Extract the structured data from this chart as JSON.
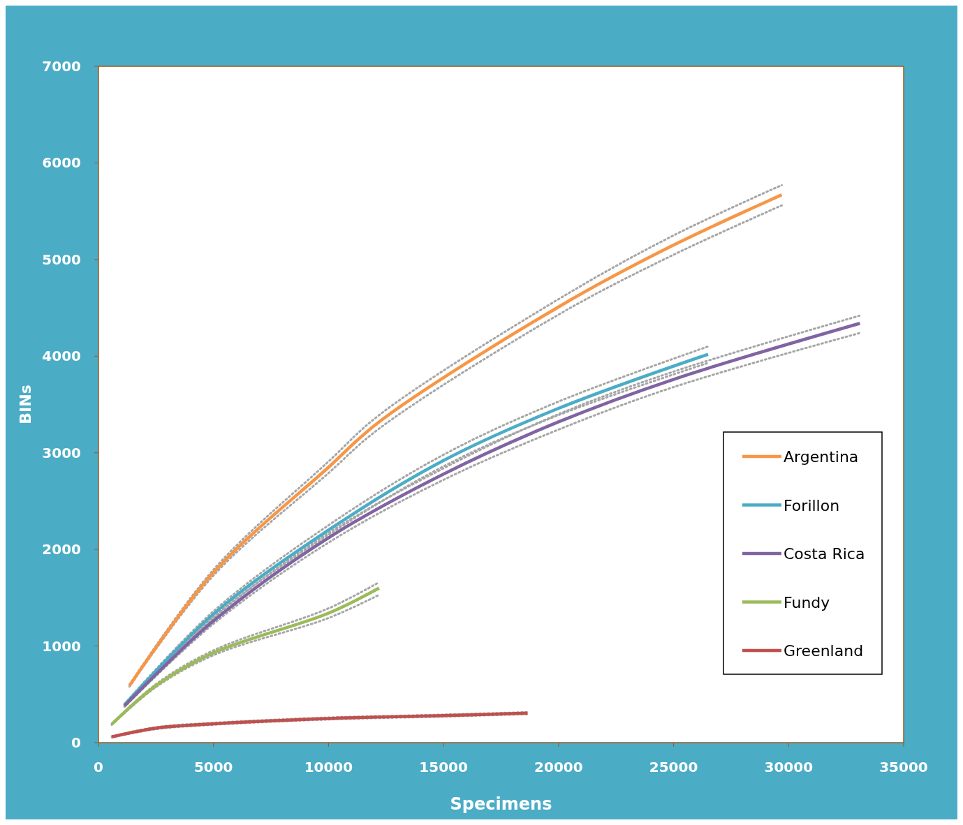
{
  "chart_data": {
    "type": "line",
    "xlabel": "Specimens",
    "ylabel": "BINs",
    "xlim": [
      0,
      35000
    ],
    "xticks": [
      0,
      5000,
      10000,
      15000,
      20000,
      25000,
      30000,
      35000
    ],
    "ylim": [
      0,
      7000
    ],
    "yticks": [
      0,
      1000,
      2000,
      3000,
      4000,
      5000,
      6000,
      7000
    ],
    "grid": false,
    "legend": "bottom right",
    "marker": "none",
    "line_style": "solid",
    "series": [
      {
        "color": "#a6a6a6",
        "line_style": "dotted",
        "x": [
          1350,
          5000,
          10000,
          12200,
          20000,
          25000,
          29700
        ],
        "values": [
          580,
          1730,
          2790,
          3250,
          4430,
          5050,
          5560
        ]
      },
      {
        "color": "#a6a6a6",
        "line_style": "dotted",
        "x": [
          1350,
          5000,
          10000,
          12200,
          20000,
          25000,
          29700
        ],
        "values": [
          600,
          1790,
          2910,
          3390,
          4590,
          5250,
          5770
        ]
      },
      {
        "color": "#a6a6a6",
        "line_style": "dotted",
        "x": [
          1130,
          5000,
          10000,
          15000,
          20000,
          26500
        ],
        "values": [
          380,
          1300,
          2150,
          2860,
          3390,
          3930
        ]
      },
      {
        "color": "#a6a6a6",
        "line_style": "dotted",
        "x": [
          1130,
          5000,
          10000,
          15000,
          20000,
          26500
        ],
        "values": [
          400,
          1360,
          2250,
          2980,
          3530,
          4100
        ]
      },
      {
        "color": "#a6a6a6",
        "line_style": "dotted",
        "x": [
          1130,
          5000,
          10000,
          15000,
          20000,
          25000,
          33100
        ],
        "values": [
          370,
          1230,
          2070,
          2720,
          3240,
          3680,
          4240
        ]
      },
      {
        "color": "#a6a6a6",
        "line_style": "dotted",
        "x": [
          1130,
          5000,
          10000,
          15000,
          20000,
          25000,
          33100
        ],
        "values": [
          390,
          1290,
          2170,
          2840,
          3400,
          3840,
          4420
        ]
      },
      {
        "color": "#a6a6a6",
        "line_style": "dotted",
        "x": [
          580,
          2500,
          5000,
          10000,
          12200
        ],
        "values": [
          185,
          575,
          905,
          1290,
          1530
        ]
      },
      {
        "color": "#a6a6a6",
        "line_style": "dotted",
        "x": [
          580,
          2500,
          5000,
          10000,
          12200
        ],
        "values": [
          195,
          605,
          955,
          1390,
          1660
        ]
      },
      {
        "color": "#a6a6a6",
        "line_style": "dotted",
        "x": [
          580,
          2500,
          5000,
          10000,
          15000,
          18650
        ],
        "values": [
          55,
          140,
          185,
          240,
          270,
          295
        ]
      },
      {
        "color": "#a6a6a6",
        "line_style": "dotted",
        "x": [
          580,
          2500,
          5000,
          10000,
          15000,
          18650
        ],
        "values": [
          65,
          160,
          205,
          260,
          290,
          315
        ]
      },
      {
        "name": "Argentina",
        "color": "#f79646",
        "x": [
          1350,
          5000,
          10000,
          12200,
          20000,
          25000,
          29700
        ],
        "values": [
          590,
          1760,
          2850,
          3320,
          4510,
          5150,
          5670
        ]
      },
      {
        "name": "Forillon",
        "color": "#4bacc6",
        "x": [
          1130,
          5000,
          10000,
          15000,
          20000,
          26500
        ],
        "values": [
          390,
          1330,
          2200,
          2920,
          3460,
          4020
        ]
      },
      {
        "name": "Costa Rica",
        "color": "#8064a2",
        "x": [
          1130,
          5000,
          10000,
          15000,
          20000,
          25000,
          33100
        ],
        "values": [
          380,
          1260,
          2120,
          2780,
          3320,
          3760,
          4340
        ]
      },
      {
        "name": "Fundy",
        "color": "#9bbb59",
        "x": [
          580,
          2500,
          5000,
          10000,
          12200
        ],
        "values": [
          190,
          590,
          930,
          1340,
          1600
        ]
      },
      {
        "name": "Greenland",
        "color": "#c0504d",
        "x": [
          580,
          2500,
          5000,
          10000,
          15000,
          18650
        ],
        "values": [
          60,
          150,
          195,
          250,
          280,
          305
        ]
      }
    ]
  }
}
